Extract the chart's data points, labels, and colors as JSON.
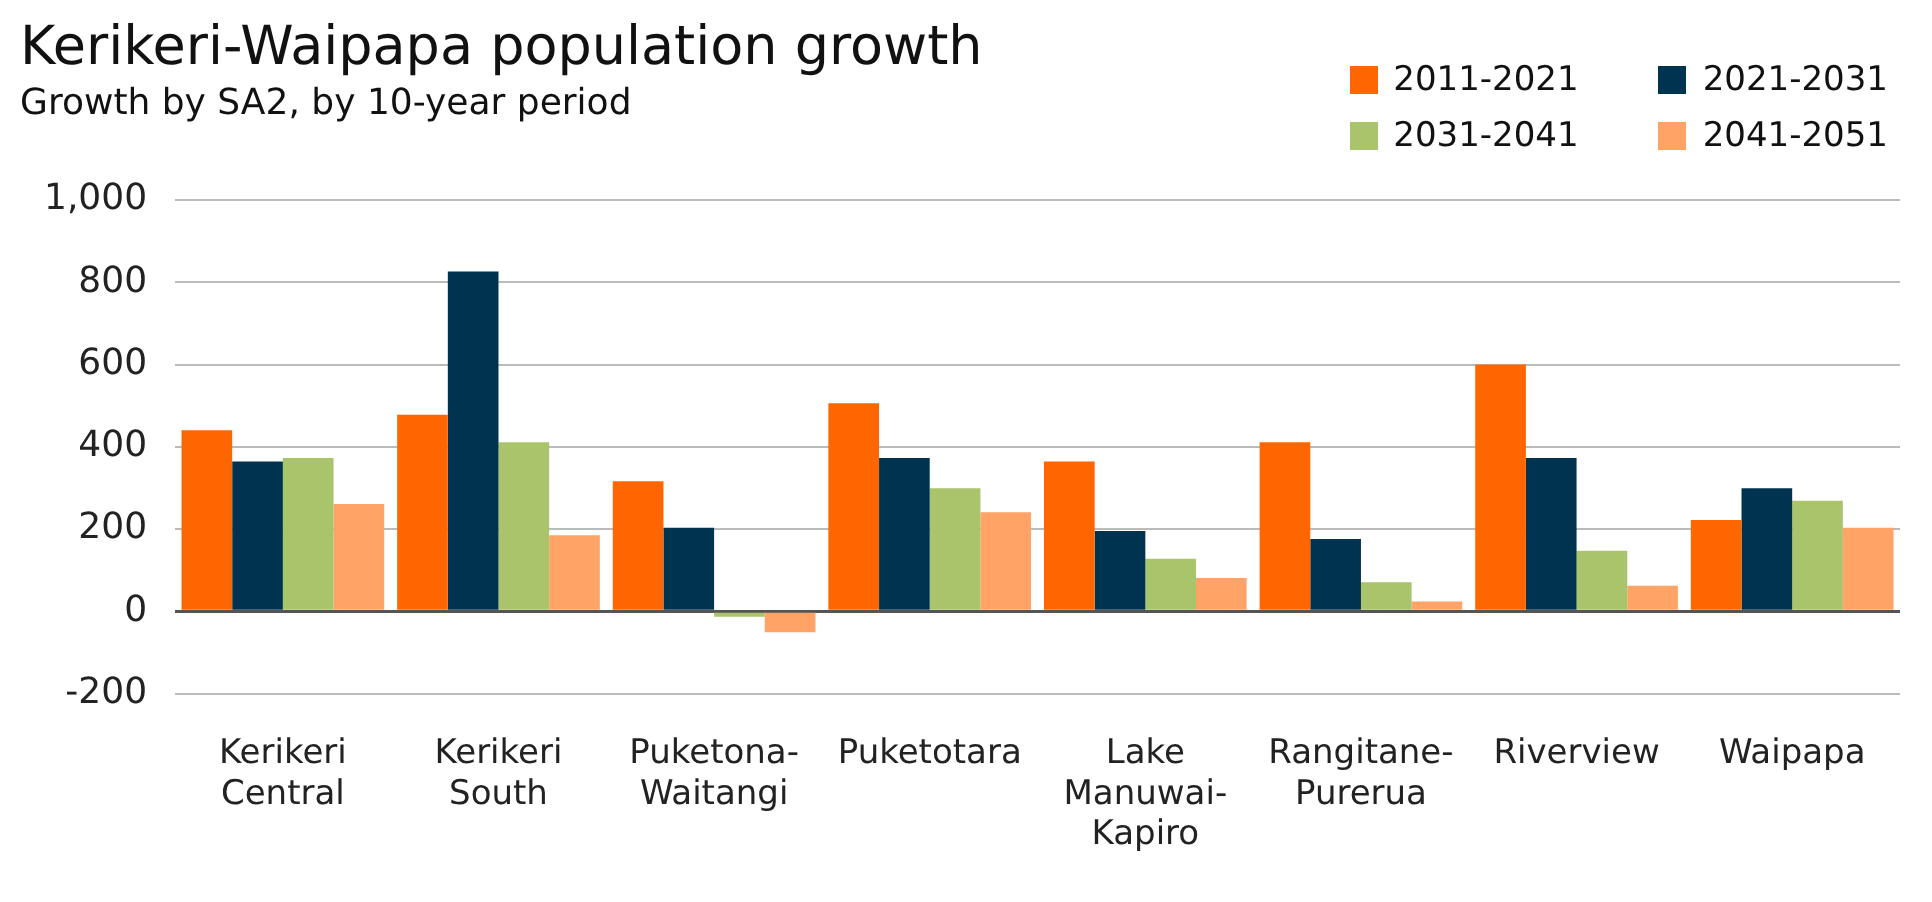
{
  "chart_data": {
    "type": "bar",
    "title": "Kerikeri-Waipapa population growth",
    "subtitle": "Growth by SA2, by 10-year period",
    "categories": [
      "Kerikeri Central",
      "Kerikeri South",
      "Puketona-Waitangi",
      "Puketotara",
      "Lake Manuwai-Kapiro",
      "Rangitane-Purerua",
      "Riverview",
      "Waipapa"
    ],
    "series": [
      {
        "name": "2011-2021",
        "color": "#ff6600",
        "values": [
          440,
          478,
          316,
          506,
          364,
          411,
          600,
          222
        ]
      },
      {
        "name": "2021-2031",
        "color": "#003350",
        "values": [
          364,
          826,
          203,
          373,
          195,
          176,
          373,
          299
        ]
      },
      {
        "name": "2031-2041",
        "color": "#aac46c",
        "values": [
          373,
          411,
          -13,
          299,
          128,
          71,
          147,
          269
        ]
      },
      {
        "name": "2041-2051",
        "color": "#ffa366",
        "values": [
          261,
          185,
          -51,
          241,
          81,
          24,
          62,
          203
        ]
      }
    ],
    "ylim": [
      -200,
      1000
    ],
    "yticks": [
      {
        "value": -200,
        "label": "-200"
      },
      0,
      200,
      400,
      600,
      800,
      {
        "value": 1000,
        "label": "1,000"
      }
    ],
    "grid": "y",
    "legend": "top right"
  }
}
